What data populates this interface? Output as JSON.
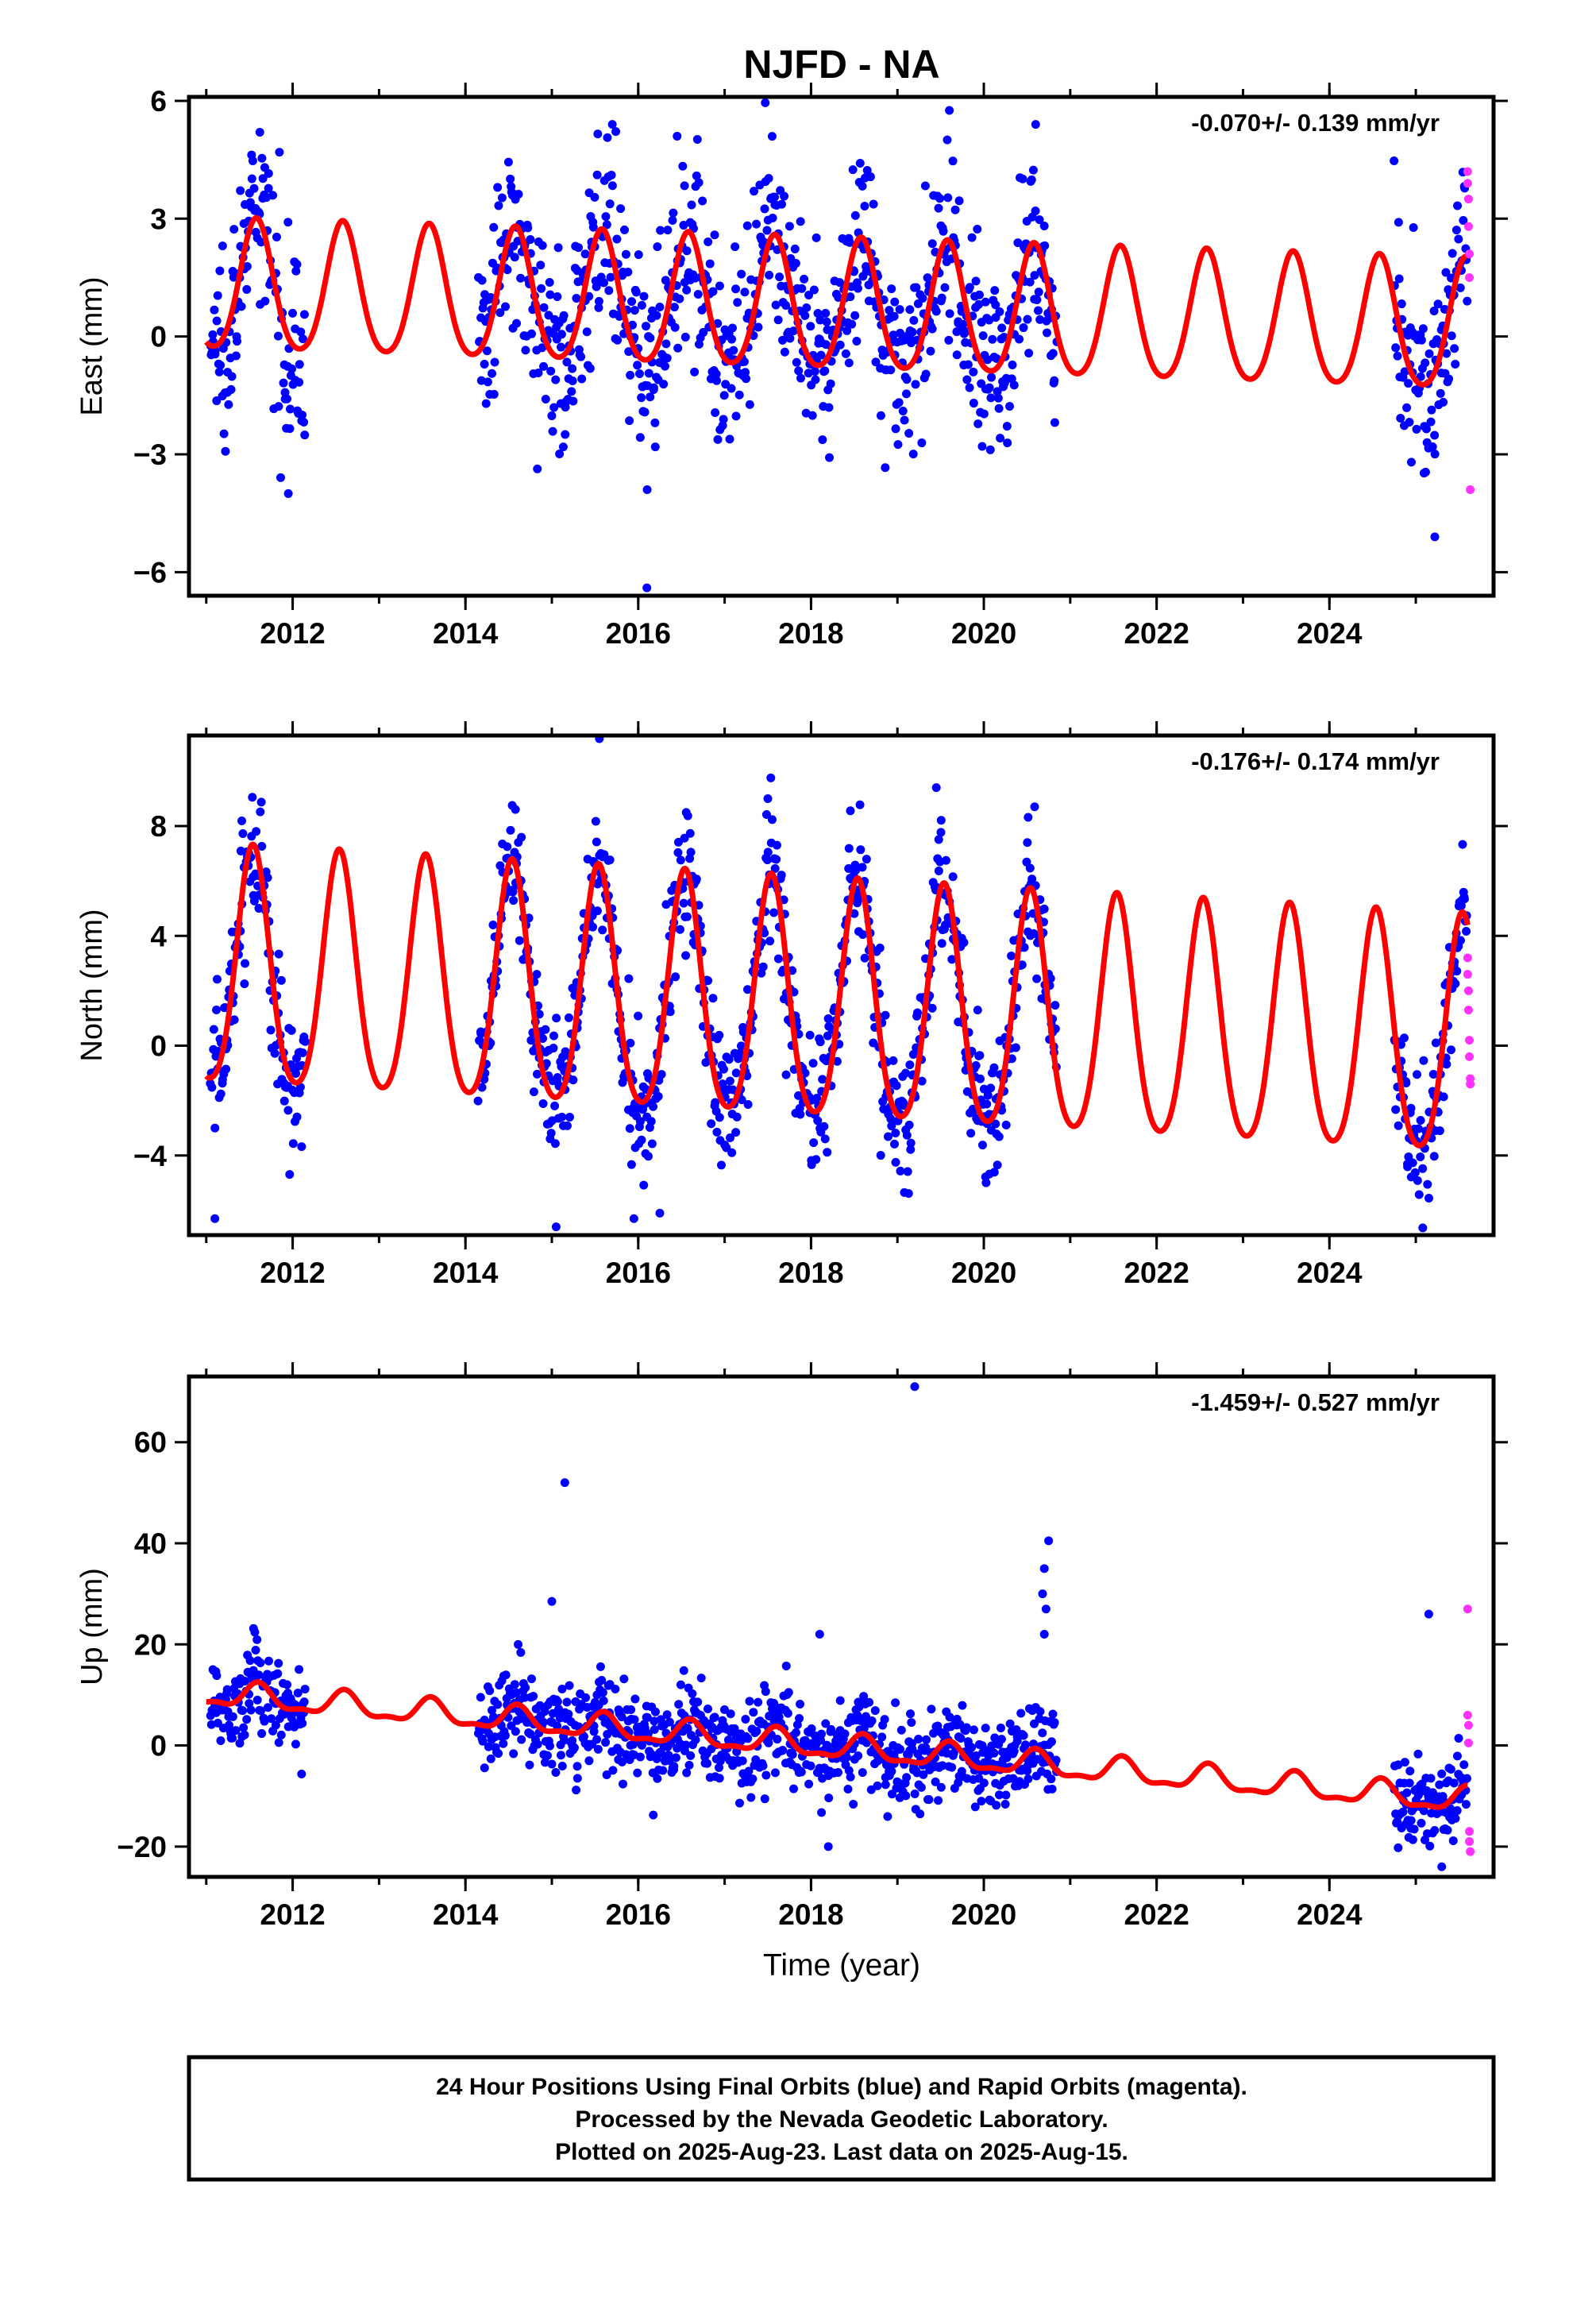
{
  "title": "NJFD - NA",
  "xlabel": "Time (year)",
  "colors": {
    "final": "#0000ff",
    "rapid": "#ff33ff",
    "model": "#ff0000",
    "frame": "#000000"
  },
  "footer": {
    "line1": "24 Hour Positions Using Final Orbits (blue) and Rapid Orbits (magenta).",
    "line2": "Processed by the Nevada Geodetic Laboratory.",
    "line3": "Plotted on 2025-Aug-23. Last data on 2025-Aug-15."
  },
  "chart_data": [
    {
      "type": "scatter",
      "component": "east",
      "ylabel": "East (mm)",
      "rate_label": "-0.070+/- 0.139 mm/yr",
      "xlim": [
        2010.8,
        2025.9
      ],
      "ylim": [
        -6.6,
        6.1
      ],
      "xticks": [
        2012,
        2014,
        2016,
        2018,
        2020,
        2022,
        2024
      ],
      "yticks": [
        -6,
        -3,
        0,
        3,
        6
      ],
      "ytick_labels": [
        "−6",
        "−3",
        "0",
        "3",
        "6"
      ],
      "data_segments": [
        [
          2011.05,
          2012.15
        ],
        [
          2014.15,
          2020.85
        ],
        [
          2024.75,
          2025.6
        ]
      ],
      "model": {
        "amplitude": 1.65,
        "phase_year": 0.58,
        "semiannual": 0.22,
        "offset": 0.7,
        "rate": -0.07,
        "ref_year": 2018
      },
      "noise_sd": 1.2,
      "outliers": [
        [
          2011.62,
          5.2
        ],
        [
          2015.7,
          5.4
        ],
        [
          2016.45,
          5.1
        ],
        [
          2017.47,
          5.95
        ],
        [
          2020.6,
          5.4
        ],
        [
          2016.1,
          -6.4
        ],
        [
          2025.22,
          -5.1
        ],
        [
          2011.95,
          -4.0
        ]
      ],
      "rapid_points": [
        [
          2025.6,
          4.2
        ],
        [
          2025.6,
          3.9
        ],
        [
          2025.61,
          3.5
        ],
        [
          2025.61,
          2.8
        ],
        [
          2025.62,
          2.1
        ],
        [
          2025.62,
          1.5
        ],
        [
          2025.63,
          -3.9
        ]
      ]
    },
    {
      "type": "scatter",
      "component": "north",
      "ylabel": "North (mm)",
      "rate_label": "-0.176+/- 0.174 mm/yr",
      "xlim": [
        2010.8,
        2025.9
      ],
      "ylim": [
        -6.9,
        11.3
      ],
      "xticks": [
        2012,
        2014,
        2016,
        2018,
        2020,
        2022,
        2024
      ],
      "yticks": [
        -4,
        0,
        4,
        8
      ],
      "ytick_labels": [
        "−4",
        "0",
        "4",
        "8"
      ],
      "data_segments": [
        [
          2011.05,
          2012.15
        ],
        [
          2014.15,
          2020.85
        ],
        [
          2024.75,
          2025.6
        ]
      ],
      "model": {
        "amplitude": 4.3,
        "phase_year": 0.54,
        "semiannual": 0.6,
        "offset": 1.3,
        "rate": -0.176,
        "ref_year": 2018
      },
      "noise_sd": 1.3,
      "outliers": [
        [
          2015.55,
          11.3
        ],
        [
          2019.45,
          9.4
        ],
        [
          2017.5,
          9.0
        ],
        [
          2011.1,
          -6.3
        ],
        [
          2015.05,
          -6.6
        ],
        [
          2015.95,
          -6.3
        ],
        [
          2016.25,
          -6.1
        ]
      ],
      "rapid_points": [
        [
          2025.6,
          3.2
        ],
        [
          2025.6,
          2.6
        ],
        [
          2025.61,
          2.0
        ],
        [
          2025.61,
          1.3
        ],
        [
          2025.62,
          0.2
        ],
        [
          2025.62,
          -0.4
        ],
        [
          2025.63,
          -1.2
        ],
        [
          2025.63,
          -1.4
        ]
      ]
    },
    {
      "type": "scatter",
      "component": "up",
      "ylabel": "Up (mm)",
      "rate_label": "-1.459+/- 0.527 mm/yr",
      "xlim": [
        2010.8,
        2025.9
      ],
      "ylim": [
        -26,
        73
      ],
      "xticks": [
        2012,
        2014,
        2016,
        2018,
        2020,
        2022,
        2024
      ],
      "yticks": [
        -20,
        0,
        20,
        40,
        60
      ],
      "ytick_labels": [
        "−20",
        "0",
        "20",
        "40",
        "60"
      ],
      "data_segments": [
        [
          2011.05,
          2012.15
        ],
        [
          2014.15,
          2020.85
        ],
        [
          2024.75,
          2025.6
        ]
      ],
      "model": {
        "amplitude": 2.3,
        "phase_year": 0.6,
        "semiannual": 0.9,
        "offset": 0.0,
        "rate": -1.459,
        "ref_year": 2018
      },
      "noise_sd": 4.5,
      "outliers": [
        [
          2019.2,
          71.0
        ],
        [
          2015.15,
          52.0
        ],
        [
          2020.75,
          40.5
        ],
        [
          2020.7,
          35.0
        ],
        [
          2020.68,
          30.0
        ],
        [
          2020.72,
          27.0
        ],
        [
          2020.7,
          22.0
        ],
        [
          2015.0,
          28.5
        ],
        [
          2018.1,
          22.0
        ],
        [
          2025.15,
          26.0
        ],
        [
          2018.2,
          -20.0
        ],
        [
          2025.3,
          -24.0
        ]
      ],
      "rapid_points": [
        [
          2025.6,
          27.0
        ],
        [
          2025.6,
          6.0
        ],
        [
          2025.61,
          4.0
        ],
        [
          2025.61,
          0.5
        ],
        [
          2025.62,
          -17.0
        ],
        [
          2025.62,
          -19.0
        ],
        [
          2025.63,
          -21.0
        ]
      ]
    }
  ]
}
